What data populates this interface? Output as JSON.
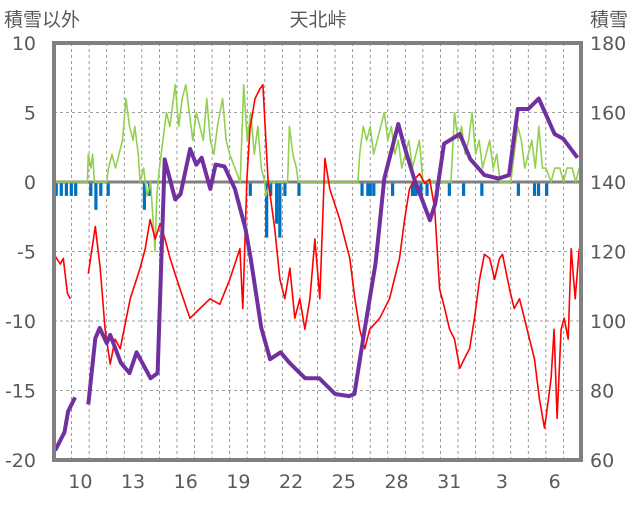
{
  "chart_data": {
    "type": "line",
    "title": "天北峠",
    "ylabel_left": "積雪以外",
    "ylabel_right": "積雪",
    "ylim_left": [
      -20,
      10
    ],
    "ylim_right": [
      60,
      180
    ],
    "yticks_left": [
      "10",
      "5",
      "0",
      "-5",
      "-10",
      "-15",
      "-20"
    ],
    "yticks_right": [
      "180",
      "160",
      "140",
      "120",
      "100",
      "80",
      "60"
    ],
    "xlim_day": [
      9,
      39
    ],
    "xticks": [
      {
        "day": 10,
        "label": "10"
      },
      {
        "day": 13,
        "label": "13"
      },
      {
        "day": 16,
        "label": "16"
      },
      {
        "day": 19,
        "label": "19"
      },
      {
        "day": 22,
        "label": "22"
      },
      {
        "day": 25,
        "label": "25"
      },
      {
        "day": 28,
        "label": "28"
      },
      {
        "day": 31,
        "label": "31"
      },
      {
        "day": 34,
        "label": "3"
      },
      {
        "day": 37,
        "label": "6"
      }
    ],
    "grid": true,
    "colors": {
      "green": "#92d050",
      "blue": "#0070c0",
      "red": "#ff0000",
      "purple": "#7030a0",
      "frame": "#808080"
    },
    "series": [
      {
        "name": "green-line",
        "axis": "left",
        "color": "#92d050",
        "points": [
          [
            9.0,
            0
          ],
          [
            10.9,
            0
          ],
          [
            10.95,
            2
          ],
          [
            11.1,
            1
          ],
          [
            11.2,
            2
          ],
          [
            11.3,
            0
          ],
          [
            12.0,
            0
          ],
          [
            12.1,
            1
          ],
          [
            12.3,
            2
          ],
          [
            12.5,
            1
          ],
          [
            12.7,
            2
          ],
          [
            12.9,
            3
          ],
          [
            13.1,
            6
          ],
          [
            13.3,
            4
          ],
          [
            13.5,
            3
          ],
          [
            13.6,
            4
          ],
          [
            13.8,
            2
          ],
          [
            13.9,
            0
          ],
          [
            14.1,
            1
          ],
          [
            14.2,
            0
          ],
          [
            14.3,
            -1
          ],
          [
            14.5,
            0
          ],
          [
            14.6,
            -2
          ],
          [
            14.75,
            -5
          ],
          [
            14.85,
            -1
          ],
          [
            15.0,
            1
          ],
          [
            15.2,
            3
          ],
          [
            15.4,
            5
          ],
          [
            15.6,
            4
          ],
          [
            15.8,
            6
          ],
          [
            15.9,
            7
          ],
          [
            16.1,
            4
          ],
          [
            16.3,
            6
          ],
          [
            16.5,
            7
          ],
          [
            16.7,
            5
          ],
          [
            16.9,
            3
          ],
          [
            17.1,
            5
          ],
          [
            17.3,
            4
          ],
          [
            17.5,
            3
          ],
          [
            17.7,
            6
          ],
          [
            17.9,
            3
          ],
          [
            18.1,
            2
          ],
          [
            18.3,
            4
          ],
          [
            18.6,
            6
          ],
          [
            18.8,
            3
          ],
          [
            19.0,
            2
          ],
          [
            19.3,
            1
          ],
          [
            19.6,
            0
          ],
          [
            19.8,
            7
          ],
          [
            20.0,
            3
          ],
          [
            20.2,
            5
          ],
          [
            20.4,
            2
          ],
          [
            20.6,
            4
          ],
          [
            20.8,
            1
          ],
          [
            21.0,
            0
          ],
          [
            21.05,
            -1
          ],
          [
            21.3,
            0
          ],
          [
            22.3,
            0
          ],
          [
            22.4,
            4
          ],
          [
            22.6,
            2
          ],
          [
            22.8,
            1
          ],
          [
            22.9,
            0
          ],
          [
            26.3,
            0
          ],
          [
            26.4,
            2
          ],
          [
            26.6,
            4
          ],
          [
            26.8,
            3
          ],
          [
            27.0,
            4
          ],
          [
            27.2,
            2
          ],
          [
            27.4,
            3
          ],
          [
            27.6,
            4
          ],
          [
            27.8,
            5
          ],
          [
            28.0,
            3
          ],
          [
            28.2,
            4
          ],
          [
            28.4,
            2
          ],
          [
            28.6,
            3
          ],
          [
            28.8,
            1
          ],
          [
            29.0,
            2
          ],
          [
            29.2,
            3
          ],
          [
            29.4,
            1
          ],
          [
            29.6,
            2
          ],
          [
            29.8,
            3
          ],
          [
            30.0,
            0
          ],
          [
            31.6,
            0
          ],
          [
            31.8,
            5
          ],
          [
            32.0,
            3
          ],
          [
            32.2,
            4
          ],
          [
            32.4,
            2
          ],
          [
            32.6,
            3
          ],
          [
            32.8,
            5
          ],
          [
            33.0,
            2
          ],
          [
            33.2,
            3
          ],
          [
            33.4,
            1
          ],
          [
            33.6,
            2
          ],
          [
            33.8,
            3
          ],
          [
            34.0,
            1
          ],
          [
            34.2,
            2
          ],
          [
            34.4,
            0
          ],
          [
            35.0,
            0
          ],
          [
            35.2,
            2
          ],
          [
            35.4,
            4
          ],
          [
            35.6,
            3
          ],
          [
            35.8,
            1
          ],
          [
            36.0,
            2
          ],
          [
            36.2,
            3
          ],
          [
            36.4,
            1
          ],
          [
            36.6,
            4
          ],
          [
            36.8,
            1
          ],
          [
            37.0,
            1
          ],
          [
            37.3,
            0
          ],
          [
            37.5,
            1
          ],
          [
            37.8,
            1
          ],
          [
            38.0,
            0
          ],
          [
            38.2,
            1
          ],
          [
            38.5,
            1
          ],
          [
            38.7,
            0
          ],
          [
            38.9,
            1
          ],
          [
            39.0,
            0
          ]
        ]
      },
      {
        "name": "red-line",
        "axis": "left",
        "color": "#ff0000",
        "points": [
          [
            9.0,
            -5.2
          ],
          [
            9.36,
            -5.9
          ],
          [
            9.53,
            -5.5
          ],
          [
            9.76,
            -8.0
          ],
          [
            9.93,
            -8.4
          ],
          null,
          [
            10.95,
            -6.6
          ],
          [
            11.35,
            -3.2
          ],
          [
            11.63,
            -6.2
          ],
          [
            11.91,
            -10.6
          ],
          [
            12.2,
            -13.1
          ],
          [
            12.48,
            -11.3
          ],
          [
            12.77,
            -12.0
          ],
          [
            13.34,
            -8.4
          ],
          [
            13.9,
            -6.2
          ],
          [
            14.19,
            -4.8
          ],
          [
            14.47,
            -2.7
          ],
          [
            14.76,
            -4.1
          ],
          [
            15.04,
            -3.0
          ],
          [
            15.32,
            -4.1
          ],
          [
            15.61,
            -5.5
          ],
          [
            16.17,
            -7.7
          ],
          [
            16.74,
            -9.8
          ],
          [
            17.31,
            -9.1
          ],
          [
            17.88,
            -8.4
          ],
          [
            18.44,
            -8.8
          ],
          [
            19.01,
            -7.0
          ],
          [
            19.58,
            -4.8
          ],
          [
            19.75,
            -9.1
          ],
          [
            19.98,
            0.2
          ],
          [
            20.15,
            3.8
          ],
          [
            20.44,
            6.0
          ],
          [
            20.72,
            6.7
          ],
          [
            20.89,
            7.0
          ],
          [
            21.18,
            0.2
          ],
          [
            21.57,
            -3.4
          ],
          [
            21.86,
            -7.0
          ],
          [
            22.14,
            -8.4
          ],
          [
            22.43,
            -6.2
          ],
          [
            22.71,
            -9.8
          ],
          [
            22.99,
            -8.4
          ],
          [
            23.28,
            -10.6
          ],
          [
            23.57,
            -8.4
          ],
          [
            23.85,
            -4.1
          ],
          [
            24.13,
            -8.4
          ],
          [
            24.42,
            1.7
          ],
          [
            24.7,
            -0.5
          ],
          [
            25.27,
            -2.7
          ],
          [
            25.84,
            -5.5
          ],
          [
            26.13,
            -8.4
          ],
          [
            26.4,
            -10.6
          ],
          [
            26.69,
            -12.0
          ],
          [
            26.97,
            -10.6
          ],
          [
            27.54,
            -9.8
          ],
          [
            28.1,
            -8.4
          ],
          [
            28.67,
            -5.5
          ],
          [
            28.96,
            -2.7
          ],
          [
            29.24,
            -0.5
          ],
          [
            29.53,
            0.2
          ],
          [
            29.81,
            0.6
          ],
          [
            30.1,
            -0.1
          ],
          [
            30.38,
            0.2
          ],
          [
            30.67,
            -1.9
          ],
          [
            30.95,
            -7.7
          ],
          [
            31.24,
            -9.1
          ],
          [
            31.52,
            -10.6
          ],
          [
            31.8,
            -11.3
          ],
          [
            32.1,
            -13.4
          ],
          [
            32.37,
            -12.7
          ],
          [
            32.66,
            -12.0
          ],
          [
            32.94,
            -9.8
          ],
          [
            33.23,
            -7.0
          ],
          [
            33.5,
            -5.2
          ],
          [
            33.8,
            -5.5
          ],
          [
            34.08,
            -7.0
          ],
          [
            34.36,
            -5.5
          ],
          [
            34.53,
            -5.2
          ],
          [
            34.93,
            -7.7
          ],
          [
            35.2,
            -9.1
          ],
          [
            35.5,
            -8.4
          ],
          [
            35.78,
            -9.8
          ],
          [
            36.07,
            -11.3
          ],
          [
            36.35,
            -12.7
          ],
          [
            36.63,
            -15.6
          ],
          [
            36.92,
            -17.7
          ],
          [
            37.15,
            -15.6
          ],
          [
            37.3,
            -14.1
          ],
          [
            37.47,
            -10.6
          ],
          [
            37.64,
            -17.0
          ],
          [
            37.87,
            -10.6
          ],
          [
            38.04,
            -9.8
          ],
          [
            38.27,
            -11.3
          ],
          [
            38.44,
            -4.8
          ],
          [
            38.67,
            -8.4
          ],
          [
            38.9,
            -4.8
          ]
        ]
      },
      {
        "name": "purple-snow-depth",
        "axis": "right",
        "color": "#7030a0",
        "points": [
          [
            9.07,
            62.8
          ],
          [
            9.6,
            68
          ],
          [
            9.8,
            74
          ],
          [
            10.2,
            78
          ],
          null,
          [
            10.95,
            76
          ],
          [
            11.35,
            95
          ],
          [
            11.6,
            98
          ],
          [
            12.0,
            93.6
          ],
          [
            12.2,
            96
          ],
          [
            12.8,
            88
          ],
          [
            13.3,
            85
          ],
          [
            13.7,
            91
          ],
          [
            14.5,
            83.5
          ],
          [
            14.9,
            85
          ],
          [
            15.3,
            146.5
          ],
          [
            15.9,
            135
          ],
          [
            16.2,
            136.5
          ],
          [
            16.75,
            149.5
          ],
          [
            17.1,
            145
          ],
          [
            17.4,
            147
          ],
          [
            17.9,
            138
          ],
          [
            18.2,
            145
          ],
          [
            18.7,
            144.5
          ],
          [
            19.3,
            138
          ],
          [
            19.9,
            126.5
          ],
          [
            20.2,
            118
          ],
          [
            20.8,
            98
          ],
          [
            21.3,
            89
          ],
          [
            21.9,
            91
          ],
          [
            22.4,
            88
          ],
          [
            23.3,
            83.5
          ],
          [
            24.1,
            83.5
          ],
          [
            25.0,
            79
          ],
          [
            25.8,
            78.4
          ],
          [
            26.1,
            79
          ],
          [
            26.7,
            98
          ],
          [
            27.3,
            116.5
          ],
          [
            27.4,
            121
          ],
          [
            27.8,
            141
          ],
          [
            28.6,
            156.7
          ],
          [
            28.9,
            151
          ],
          [
            29.5,
            141
          ],
          [
            30.4,
            129
          ],
          [
            30.7,
            133.7
          ],
          [
            31.2,
            151
          ],
          [
            32.1,
            153.8
          ],
          [
            32.7,
            146.6
          ],
          [
            33.5,
            142
          ],
          [
            34.3,
            141
          ],
          [
            34.9,
            142
          ],
          [
            35.4,
            161
          ],
          [
            36.0,
            161
          ],
          [
            36.6,
            164
          ],
          [
            37.5,
            153.8
          ],
          [
            38.0,
            152.4
          ],
          [
            38.8,
            147
          ]
        ]
      }
    ],
    "bars": {
      "name": "blue-bars",
      "axis": "left",
      "color": "#0070c0",
      "points": [
        [
          9.12,
          -1
        ],
        [
          9.41,
          -1
        ],
        [
          9.7,
          -1
        ],
        [
          9.98,
          -1
        ],
        [
          10.23,
          -1
        ],
        [
          11.09,
          -1
        ],
        [
          11.38,
          -2
        ],
        [
          11.66,
          -1
        ],
        [
          12.08,
          -1
        ],
        [
          14.14,
          -2
        ],
        [
          14.43,
          -1
        ],
        [
          20.17,
          -1
        ],
        [
          21.1,
          -4
        ],
        [
          21.33,
          -1
        ],
        [
          21.67,
          -3
        ],
        [
          21.85,
          -4
        ],
        [
          22.14,
          -1
        ],
        [
          22.94,
          -1
        ],
        [
          26.53,
          -1
        ],
        [
          26.86,
          -1
        ],
        [
          27.0,
          -1
        ],
        [
          27.2,
          -1
        ],
        [
          28.27,
          -1
        ],
        [
          29.4,
          -1
        ],
        [
          29.5,
          -1
        ],
        [
          29.6,
          -1
        ],
        [
          29.88,
          -1
        ],
        [
          30.23,
          -1
        ],
        [
          30.8,
          -1
        ],
        [
          31.5,
          -1
        ],
        [
          32.31,
          -1
        ],
        [
          33.35,
          -1
        ],
        [
          35.43,
          -1
        ],
        [
          36.35,
          -1
        ],
        [
          36.58,
          -1
        ],
        [
          37.04,
          -1
        ]
      ]
    }
  }
}
